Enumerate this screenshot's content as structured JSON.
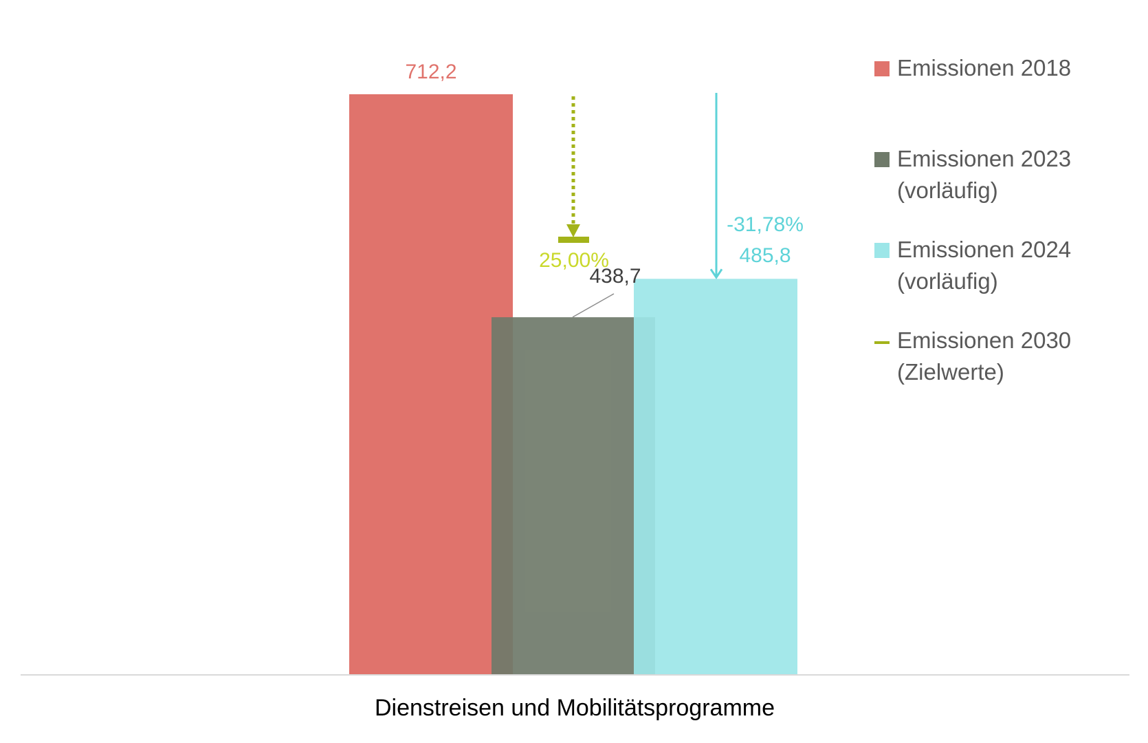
{
  "chart_data": {
    "type": "bar",
    "categories": [
      "Dienstreisen und Mobilitätsprogramme"
    ],
    "series": [
      {
        "name": "Emissionen 2018",
        "values": [
          712.2
        ],
        "label": "712,2",
        "color": "#E0736C"
      },
      {
        "name": "Emissionen 2023\n(vorläufig)",
        "values": [
          438.7
        ],
        "label": "438,7",
        "color": "#6F7A6A"
      },
      {
        "name": "Emissionen 2024\n(vorläufig)",
        "values": [
          485.8
        ],
        "label": "485,8",
        "color": "#9CE6E8"
      },
      {
        "name": "Emissionen 2030\n(Zielwerte)",
        "values": [
          534.15
        ],
        "color": "#A3B31A"
      }
    ],
    "annotations": [
      {
        "text": "25,00%",
        "color": "#C9D82B",
        "series": "Emissionen 2030"
      },
      {
        "text": "-31,78%",
        "color": "#5ED3D8",
        "series": "Emissionen 2024"
      }
    ],
    "ylim": [
      0,
      712.2
    ],
    "grid": false,
    "legend_position": "right"
  }
}
